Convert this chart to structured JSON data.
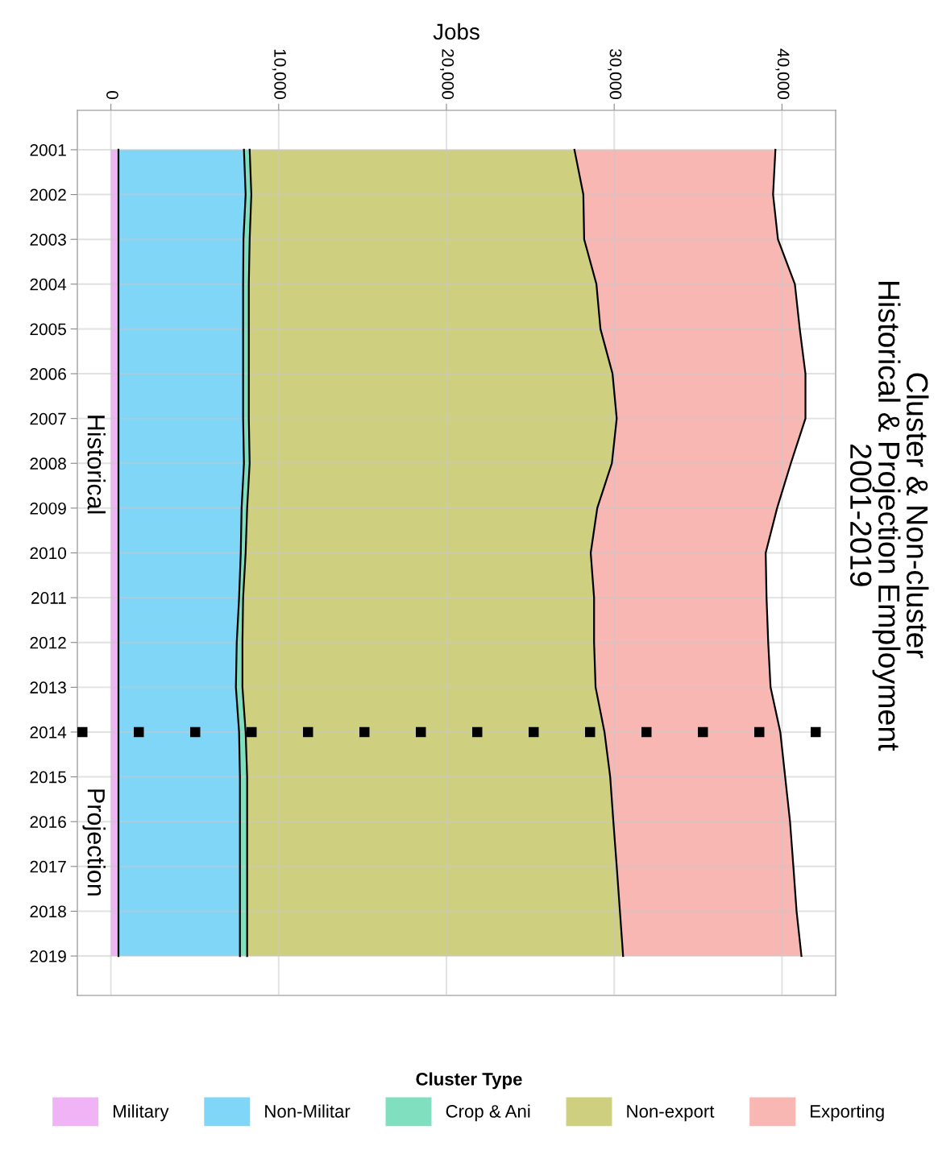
{
  "chart_data": {
    "type": "area",
    "stacked": true,
    "orientation": "horizontal",
    "title": "Cluster & Non-cluster\nHistorical & Projection Employment\n2001-2019",
    "xlabel": "Jobs",
    "legend_title": "Cluster Type",
    "legend": "bottom",
    "grid": true,
    "categories": [
      "2001",
      "2002",
      "2003",
      "2004",
      "2005",
      "2006",
      "2007",
      "2008",
      "2009",
      "2010",
      "2011",
      "2012",
      "2013",
      "2014",
      "2015",
      "2016",
      "2017",
      "2018",
      "2019"
    ],
    "series": [
      {
        "name": "Military",
        "color": "#f0b3f5",
        "values": [
          450,
          450,
          450,
          450,
          450,
          450,
          450,
          450,
          450,
          450,
          450,
          450,
          450,
          450,
          450,
          450,
          450,
          450,
          450
        ]
      },
      {
        "name": "Non-Militar",
        "color": "#7fd6f7",
        "values": [
          7480,
          7580,
          7450,
          7430,
          7430,
          7430,
          7430,
          7480,
          7340,
          7290,
          7190,
          7050,
          7000,
          7190,
          7240,
          7240,
          7240,
          7240,
          7240
        ]
      },
      {
        "name": "Crop & Ani",
        "color": "#80dfbf",
        "values": [
          340,
          340,
          370,
          340,
          340,
          340,
          340,
          340,
          330,
          290,
          240,
          340,
          390,
          390,
          430,
          430,
          430,
          430,
          430
        ]
      },
      {
        "name": "Non-export",
        "color": "#cfd07f",
        "values": [
          19360,
          19790,
          19940,
          20720,
          20960,
          21680,
          21930,
          21590,
          20870,
          20570,
          20920,
          20960,
          21050,
          21390,
          21640,
          21830,
          22030,
          22220,
          22410
        ]
      },
      {
        "name": "Exporting",
        "color": "#f8b7b3",
        "values": [
          11980,
          11310,
          11550,
          11830,
          11880,
          11500,
          11250,
          10670,
          10720,
          10430,
          10280,
          10380,
          10430,
          10480,
          10430,
          10530,
          10530,
          10530,
          10630
        ]
      }
    ],
    "xlim": [
      -2000,
      43200
    ],
    "xticks": [
      0,
      {
        "value": 10000,
        "label": "10,000"
      },
      {
        "value": 20000,
        "label": "20,000"
      },
      {
        "value": 30000,
        "label": "30,000"
      },
      {
        "value": 40000,
        "label": "40,000"
      }
    ],
    "ref_lines": [
      {
        "axis": "y",
        "value": "2014",
        "color": "#000000",
        "line_style": "dotted"
      }
    ],
    "annotations": [
      "Historical",
      "Projection"
    ]
  }
}
